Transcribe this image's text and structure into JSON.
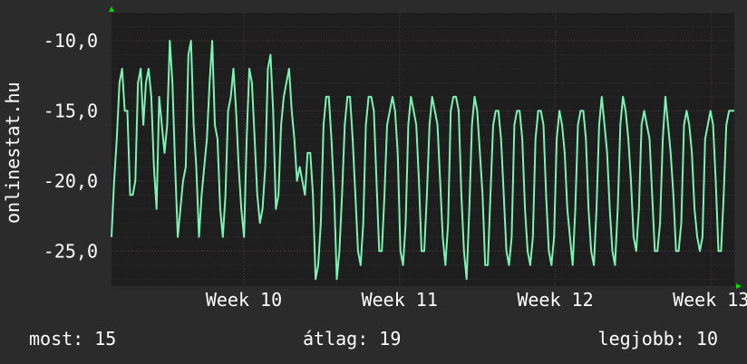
{
  "chart_data": {
    "type": "line",
    "ylabel": "onlinestat.hu",
    "ylim": [
      -27.5,
      -8.0
    ],
    "y_ticks": [
      -10.0,
      -15.0,
      -20.0,
      -25.0
    ],
    "y_tick_labels": [
      "-10,0",
      "-15,0",
      "-20,0",
      "-25,0"
    ],
    "x_range_weeks": [
      9.0,
      13.0
    ],
    "x_ticks": [
      9.85,
      10.85,
      11.85,
      12.85
    ],
    "x_tick_labels": [
      "Week 10",
      "Week 11",
      "Week 12",
      "Week 13"
    ],
    "grid": true,
    "colors": {
      "background": "#2b2b2b",
      "plot_area": "#1e1e1e",
      "line": "#7cf2b4",
      "grid_major": "#5a3a3a",
      "arrow": "#00dd00"
    },
    "series": [
      {
        "values": [
          -24,
          -20,
          -17,
          -13,
          -12,
          -15,
          -15,
          -21,
          -21,
          -20,
          -13,
          -12,
          -16,
          -13,
          -12,
          -14,
          -19,
          -22,
          -14,
          -16,
          -18,
          -16,
          -10,
          -13,
          -19,
          -24,
          -22,
          -20,
          -19,
          -11,
          -10,
          -16,
          -19,
          -24,
          -21,
          -19,
          -17,
          -13,
          -10,
          -16,
          -17,
          -22,
          -24,
          -21,
          -15,
          -14,
          -12,
          -15,
          -19,
          -22,
          -24,
          -17,
          -12,
          -13,
          -17,
          -21,
          -23,
          -22,
          -19,
          -12,
          -11,
          -15,
          -22,
          -21,
          -16,
          -14,
          -13,
          -12,
          -15,
          -17,
          -20,
          -19,
          -20,
          -21,
          -18,
          -18,
          -21,
          -27,
          -26,
          -23,
          -16,
          -14,
          -14,
          -17,
          -21,
          -27,
          -25,
          -21,
          -16,
          -14,
          -14,
          -17,
          -21,
          -25,
          -26,
          -23,
          -16,
          -14,
          -14,
          -15,
          -20,
          -25,
          -25,
          -21,
          -16,
          -15,
          -14,
          -15,
          -18,
          -25,
          -26,
          -23,
          -16,
          -14,
          -15,
          -16,
          -20,
          -25,
          -25,
          -21,
          -16,
          -14,
          -15,
          -16,
          -20,
          -24,
          -26,
          -23,
          -15,
          -14,
          -14,
          -15,
          -21,
          -25,
          -27,
          -22,
          -16,
          -14,
          -15,
          -18,
          -21,
          -26,
          -26,
          -21,
          -16,
          -15,
          -15,
          -17,
          -21,
          -25,
          -26,
          -24,
          -16,
          -15,
          -15,
          -17,
          -22,
          -25,
          -26,
          -24,
          -17,
          -15,
          -15,
          -16,
          -21,
          -25,
          -26,
          -24,
          -17,
          -15,
          -16,
          -18,
          -22,
          -24,
          -26,
          -22,
          -16,
          -15,
          -15,
          -17,
          -22,
          -25,
          -26,
          -22,
          -16,
          -14,
          -16,
          -18,
          -22,
          -25,
          -26,
          -22,
          -16,
          -14,
          -15,
          -17,
          -20,
          -24,
          -25,
          -22,
          -16,
          -15,
          -16,
          -17,
          -21,
          -25,
          -25,
          -23,
          -17,
          -14,
          -16,
          -18,
          -21,
          -25,
          -25,
          -23,
          -16,
          -15,
          -16,
          -18,
          -22,
          -24,
          -25,
          -24,
          -17,
          -16,
          -15,
          -16,
          -20,
          -25,
          -25,
          -21,
          -16,
          -15,
          -15,
          -15
        ]
      }
    ]
  },
  "footer": {
    "current": "most: 15",
    "average": "átlag: 19",
    "best": "legjobb: 10"
  }
}
